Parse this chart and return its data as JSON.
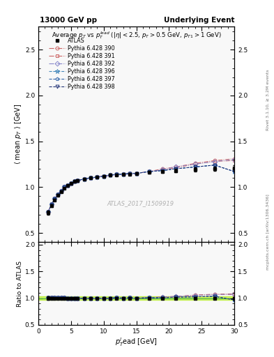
{
  "title_left": "13000 GeV pp",
  "title_right": "Underlying Event",
  "right_label_top": "Rivet 3.1.10, ≥ 3.2M events",
  "right_label_bot": "mcplots.cern.ch [arXiv:1306.3436]",
  "watermark": "ATLAS_2017_I1509919",
  "main_title": "Average $p_T$ vs $p_T^{lead}$ ($|\\eta| < 2.5$, $p_T > 0.5$ GeV, $p_{T1} > 1$ GeV)",
  "ylabel_main": "$\\langle$ mean $p_T$ $\\rangle$ [GeV]",
  "ylabel_ratio": "Ratio to ATLAS",
  "xlabel": "$p_T^{l}$ead [GeV]",
  "ylim_main": [
    0.4,
    2.75
  ],
  "ylim_ratio": [
    0.5,
    2.05
  ],
  "xlim": [
    0,
    30
  ],
  "yticks_main": [
    0.5,
    1.0,
    1.5,
    2.0,
    2.5
  ],
  "yticks_ratio": [
    0.5,
    1.0,
    1.5,
    2.0
  ],
  "atlas_x": [
    1.5,
    2.0,
    2.5,
    3.0,
    3.5,
    4.0,
    4.5,
    5.0,
    5.5,
    6.0,
    7.0,
    8.0,
    9.0,
    10.0,
    11.0,
    12.0,
    13.0,
    14.0,
    15.0,
    17.0,
    19.0,
    21.0,
    24.0,
    27.0,
    30.0
  ],
  "atlas_y": [
    0.72,
    0.8,
    0.86,
    0.91,
    0.95,
    0.99,
    1.02,
    1.04,
    1.06,
    1.07,
    1.09,
    1.1,
    1.11,
    1.12,
    1.13,
    1.13,
    1.14,
    1.14,
    1.15,
    1.16,
    1.17,
    1.18,
    1.19,
    1.2,
    1.21
  ],
  "atlas_yerr": [
    0.02,
    0.015,
    0.012,
    0.01,
    0.009,
    0.008,
    0.007,
    0.007,
    0.006,
    0.006,
    0.006,
    0.006,
    0.006,
    0.006,
    0.007,
    0.007,
    0.008,
    0.009,
    0.01,
    0.012,
    0.015,
    0.018,
    0.022,
    0.025,
    0.03
  ],
  "mc_sets": [
    {
      "label": "Pythia 6.428 390",
      "color": "#cc6666",
      "marker": "o",
      "linestyle": "-.",
      "y": [
        0.73,
        0.81,
        0.87,
        0.92,
        0.96,
        1.0,
        1.02,
        1.04,
        1.06,
        1.07,
        1.09,
        1.1,
        1.11,
        1.12,
        1.13,
        1.14,
        1.14,
        1.15,
        1.15,
        1.17,
        1.2,
        1.22,
        1.26,
        1.29,
        1.31
      ]
    },
    {
      "label": "Pythia 6.428 391",
      "color": "#cc6666",
      "marker": "s",
      "linestyle": "-.",
      "y": [
        0.73,
        0.81,
        0.87,
        0.92,
        0.96,
        1.0,
        1.02,
        1.04,
        1.06,
        1.07,
        1.09,
        1.1,
        1.11,
        1.12,
        1.13,
        1.14,
        1.14,
        1.15,
        1.15,
        1.17,
        1.19,
        1.21,
        1.25,
        1.28,
        1.29
      ]
    },
    {
      "label": "Pythia 6.428 392",
      "color": "#8888cc",
      "marker": "D",
      "linestyle": "-.",
      "y": [
        0.73,
        0.81,
        0.87,
        0.92,
        0.96,
        1.0,
        1.02,
        1.04,
        1.06,
        1.07,
        1.09,
        1.1,
        1.11,
        1.12,
        1.13,
        1.14,
        1.14,
        1.15,
        1.15,
        1.17,
        1.19,
        1.22,
        1.25,
        1.28,
        1.3
      ]
    },
    {
      "label": "Pythia 6.428 396",
      "color": "#4488bb",
      "marker": "*",
      "linestyle": "--",
      "y": [
        0.73,
        0.81,
        0.87,
        0.92,
        0.96,
        1.0,
        1.02,
        1.04,
        1.06,
        1.07,
        1.09,
        1.1,
        1.11,
        1.12,
        1.13,
        1.14,
        1.14,
        1.15,
        1.15,
        1.17,
        1.18,
        1.2,
        1.22,
        1.24,
        1.17
      ]
    },
    {
      "label": "Pythia 6.428 397",
      "color": "#3366aa",
      "marker": "p",
      "linestyle": "--",
      "y": [
        0.73,
        0.81,
        0.87,
        0.92,
        0.96,
        1.0,
        1.02,
        1.04,
        1.06,
        1.07,
        1.09,
        1.1,
        1.11,
        1.12,
        1.13,
        1.14,
        1.14,
        1.15,
        1.15,
        1.17,
        1.18,
        1.2,
        1.22,
        1.24,
        1.17
      ]
    },
    {
      "label": "Pythia 6.428 398",
      "color": "#223377",
      "marker": "v",
      "linestyle": "--",
      "y": [
        0.73,
        0.81,
        0.87,
        0.92,
        0.96,
        1.0,
        1.02,
        1.04,
        1.06,
        1.07,
        1.09,
        1.1,
        1.11,
        1.12,
        1.13,
        1.14,
        1.14,
        1.15,
        1.15,
        1.17,
        1.18,
        1.2,
        1.22,
        1.24,
        1.17
      ]
    }
  ],
  "ratio_band_color": "#aaee00",
  "ratio_band_alpha": 0.6,
  "bg_color": "#f8f8f8"
}
